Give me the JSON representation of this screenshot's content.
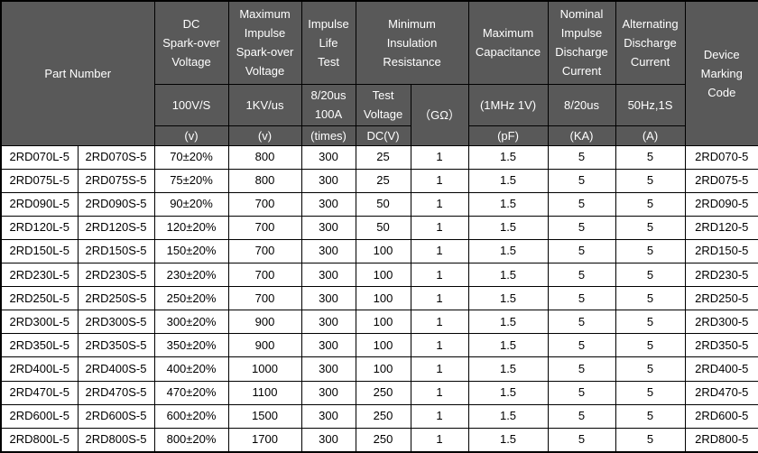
{
  "colors": {
    "header_bg": "#595959",
    "header_text": "#ffffff",
    "body_bg": "#ffffff",
    "body_text": "#000000",
    "border": "#000000"
  },
  "table": {
    "header": {
      "part_number": "Part Number",
      "dc_spark": {
        "title": "DC\nSpark-over\nVoltage",
        "condition": "100V/S",
        "unit": "(v)"
      },
      "max_impulse": {
        "title": "Maximum\nImpulse\nSpark-over\nVoltage",
        "condition": "1KV/us",
        "unit": "(v)"
      },
      "impulse_life": {
        "title": "Impulse\nLife\nTest",
        "condition": "8/20us\n100A",
        "unit": "(times)"
      },
      "min_insulation": {
        "title": "Minimum\nInsulation\nResistance",
        "condition": "Test\nVoltage",
        "unit": "DC(V)",
        "resistance_unit": "（GΩ）"
      },
      "max_capacitance": {
        "title": "Maximum\nCapacitance",
        "condition": "(1MHz 1V)",
        "unit": "(pF)"
      },
      "nominal_impulse": {
        "title": "Nominal\nImpulse\nDischarge\nCurrent",
        "condition": "8/20us",
        "unit": "(KA)"
      },
      "alternating": {
        "title": "Alternating\nDischarge\nCurrent",
        "condition": "50Hz,1S",
        "unit": "(A)"
      },
      "device_marking": {
        "title": "Device\nMarking\nCode"
      }
    },
    "rows": [
      [
        "2RD070L-5",
        "2RD070S-5",
        "70±20%",
        "800",
        "300",
        "25",
        "1",
        "1.5",
        "5",
        "5",
        "2RD070-5"
      ],
      [
        "2RD075L-5",
        "2RD075S-5",
        "75±20%",
        "800",
        "300",
        "25",
        "1",
        "1.5",
        "5",
        "5",
        "2RD075-5"
      ],
      [
        "2RD090L-5",
        "2RD090S-5",
        "90±20%",
        "700",
        "300",
        "50",
        "1",
        "1.5",
        "5",
        "5",
        "2RD090-5"
      ],
      [
        "2RD120L-5",
        "2RD120S-5",
        "120±20%",
        "700",
        "300",
        "50",
        "1",
        "1.5",
        "5",
        "5",
        "2RD120-5"
      ],
      [
        "2RD150L-5",
        "2RD150S-5",
        "150±20%",
        "700",
        "300",
        "100",
        "1",
        "1.5",
        "5",
        "5",
        "2RD150-5"
      ],
      [
        "2RD230L-5",
        "2RD230S-5",
        "230±20%",
        "700",
        "300",
        "100",
        "1",
        "1.5",
        "5",
        "5",
        "2RD230-5"
      ],
      [
        "2RD250L-5",
        "2RD250S-5",
        "250±20%",
        "700",
        "300",
        "100",
        "1",
        "1.5",
        "5",
        "5",
        "2RD250-5"
      ],
      [
        "2RD300L-5",
        "2RD300S-5",
        "300±20%",
        "900",
        "300",
        "100",
        "1",
        "1.5",
        "5",
        "5",
        "2RD300-5"
      ],
      [
        "2RD350L-5",
        "2RD350S-5",
        "350±20%",
        "900",
        "300",
        "100",
        "1",
        "1.5",
        "5",
        "5",
        "2RD350-5"
      ],
      [
        "2RD400L-5",
        "2RD400S-5",
        "400±20%",
        "1000",
        "300",
        "100",
        "1",
        "1.5",
        "5",
        "5",
        "2RD400-5"
      ],
      [
        "2RD470L-5",
        "2RD470S-5",
        "470±20%",
        "1100",
        "300",
        "250",
        "1",
        "1.5",
        "5",
        "5",
        "2RD470-5"
      ],
      [
        "2RD600L-5",
        "2RD600S-5",
        "600±20%",
        "1500",
        "300",
        "250",
        "1",
        "1.5",
        "5",
        "5",
        "2RD600-5"
      ],
      [
        "2RD800L-5",
        "2RD800S-5",
        "800±20%",
        "1700",
        "300",
        "250",
        "1",
        "1.5",
        "5",
        "5",
        "2RD800-5"
      ]
    ]
  }
}
